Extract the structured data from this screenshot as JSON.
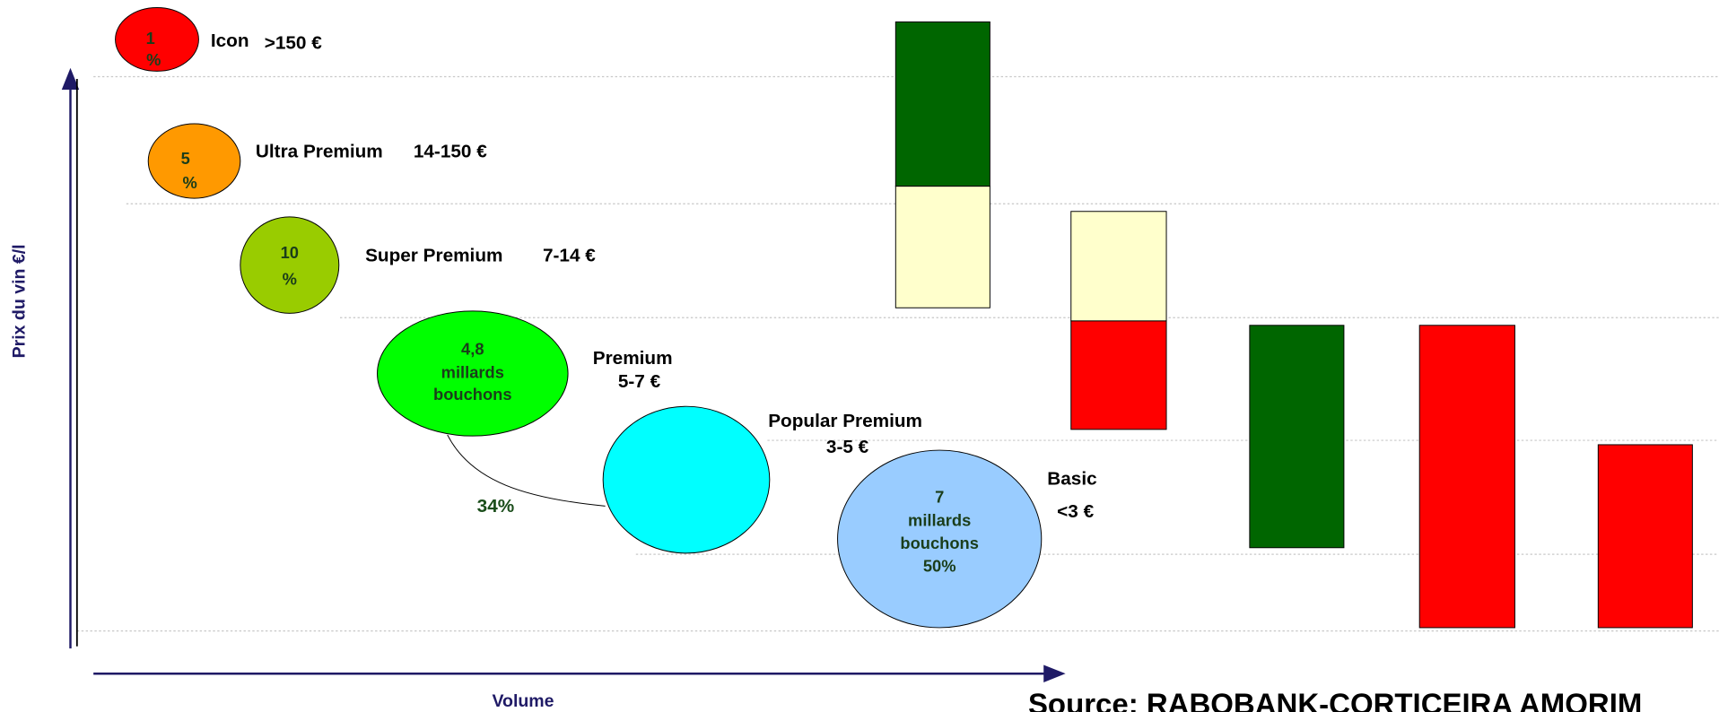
{
  "axes": {
    "y_label": "Prix du vin  €/l",
    "x_label": "Volume"
  },
  "segments": [
    {
      "name": "Icon",
      "price": ">150 €",
      "bubble": [
        "1",
        "%"
      ]
    },
    {
      "name": "Ultra Premium",
      "price": "14-150 €",
      "bubble": [
        "5",
        "%"
      ]
    },
    {
      "name": "Super Premium",
      "price": "7-14 €",
      "bubble": [
        "10",
        "%"
      ]
    },
    {
      "name": "Premium",
      "price": "5-7 €",
      "bubble": [
        "4,8",
        "millards",
        "bouchons"
      ]
    },
    {
      "name": "Popular Premium",
      "price": "3-5 €",
      "bubble": []
    },
    {
      "name": "Basic",
      "price": "<3 €",
      "bubble": [
        "7",
        "millards",
        "bouchons",
        "50%"
      ]
    }
  ],
  "annotation": "34%",
  "source": "Source: RABOBANK-CORTICEIRA AMORIM"
}
